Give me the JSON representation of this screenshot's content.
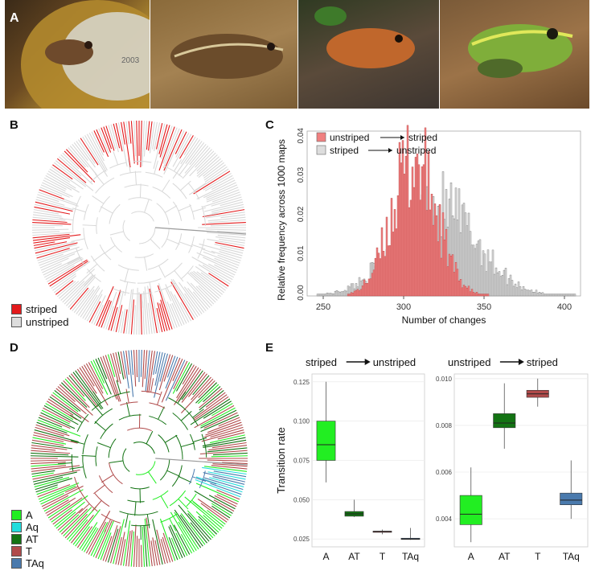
{
  "panels": {
    "A": "A",
    "B": "B",
    "C": "C",
    "D": "D",
    "E": "E"
  },
  "coin_text": "2003",
  "legend_b": [
    {
      "label": "striped",
      "color": "#e31a1c"
    },
    {
      "label": "unstriped",
      "color": "#dddddd"
    }
  ],
  "legend_d": [
    {
      "label": "A",
      "color": "#22ee22"
    },
    {
      "label": "Aq",
      "color": "#22dddd"
    },
    {
      "label": "AT",
      "color": "#137313"
    },
    {
      "label": "T",
      "color": "#b04a4a"
    },
    {
      "label": "TAq",
      "color": "#4a7aad"
    }
  ],
  "chart_data": [
    {
      "type": "bar",
      "panel": "C",
      "title": "",
      "xlabel": "Number of changes",
      "ylabel": "Relative frequency across 1000 maps",
      "xlim": [
        240,
        410
      ],
      "ylim": [
        0,
        0.042
      ],
      "xticks": [
        "250",
        "300",
        "350",
        "400"
      ],
      "yticks": [
        "0.00",
        "0.01",
        "0.02",
        "0.03",
        "0.04"
      ],
      "legend": [
        {
          "label": "unstriped",
          "arrow": "→",
          "target": "striped",
          "color": "#f08080"
        },
        {
          "label": "striped",
          "arrow": "→",
          "target": "unstriped",
          "color": "#dddddd"
        }
      ],
      "series": [
        {
          "name": "unstriped → striped",
          "mean": 306,
          "sd": 14,
          "peak": 0.036
        },
        {
          "name": "striped → unstriped",
          "mean": 320,
          "sd": 25,
          "peak": 0.024
        }
      ]
    },
    {
      "type": "box",
      "panel": "E-left",
      "title": "striped → unstriped",
      "title_from": "striped",
      "title_to": "unstriped",
      "ylabel": "Transition rate",
      "categories": [
        "A",
        "AT",
        "T",
        "TAq"
      ],
      "ylim": [
        0.02,
        0.13
      ],
      "yticks": [
        "0.025",
        "0.050",
        "0.075",
        "0.100",
        "0.125"
      ],
      "ytick_values": [
        0.025,
        0.05,
        0.075,
        0.1,
        0.125
      ],
      "boxes": [
        {
          "cat": "A",
          "min": 0.061,
          "q1": 0.075,
          "median": 0.085,
          "q3": 0.1,
          "max": 0.125,
          "color": "#22ee22"
        },
        {
          "cat": "AT",
          "min": 0.039,
          "q1": 0.0395,
          "median": 0.041,
          "q3": 0.0425,
          "max": 0.05,
          "color": "#137313"
        },
        {
          "cat": "T",
          "min": 0.028,
          "q1": 0.0295,
          "median": 0.0298,
          "q3": 0.03,
          "max": 0.031,
          "color": "#b04a4a"
        },
        {
          "cat": "TAq",
          "min": 0.0245,
          "q1": 0.0248,
          "median": 0.025,
          "q3": 0.0255,
          "max": 0.032,
          "color": "#4a7aad"
        }
      ]
    },
    {
      "type": "box",
      "panel": "E-right",
      "title": "unstriped → striped",
      "title_from": "unstriped",
      "title_to": "striped",
      "ylabel": "",
      "categories": [
        "A",
        "AT",
        "T",
        "TAq"
      ],
      "ylim": [
        0.0028,
        0.0102
      ],
      "yticks": [
        "0.004",
        "0.006",
        "0.008",
        "0.010"
      ],
      "ytick_values": [
        0.004,
        0.006,
        0.008,
        0.01
      ],
      "boxes": [
        {
          "cat": "A",
          "min": 0.003,
          "q1": 0.00375,
          "median": 0.0042,
          "q3": 0.005,
          "max": 0.0062,
          "color": "#22ee22"
        },
        {
          "cat": "AT",
          "min": 0.007,
          "q1": 0.0079,
          "median": 0.0081,
          "q3": 0.0085,
          "max": 0.0098,
          "color": "#137313"
        },
        {
          "cat": "T",
          "min": 0.0088,
          "q1": 0.0092,
          "median": 0.00935,
          "q3": 0.0095,
          "max": 0.01,
          "color": "#b04a4a"
        },
        {
          "cat": "TAq",
          "min": 0.004,
          "q1": 0.0046,
          "median": 0.0048,
          "q3": 0.0051,
          "max": 0.0065,
          "color": "#4a7aad"
        }
      ]
    }
  ]
}
